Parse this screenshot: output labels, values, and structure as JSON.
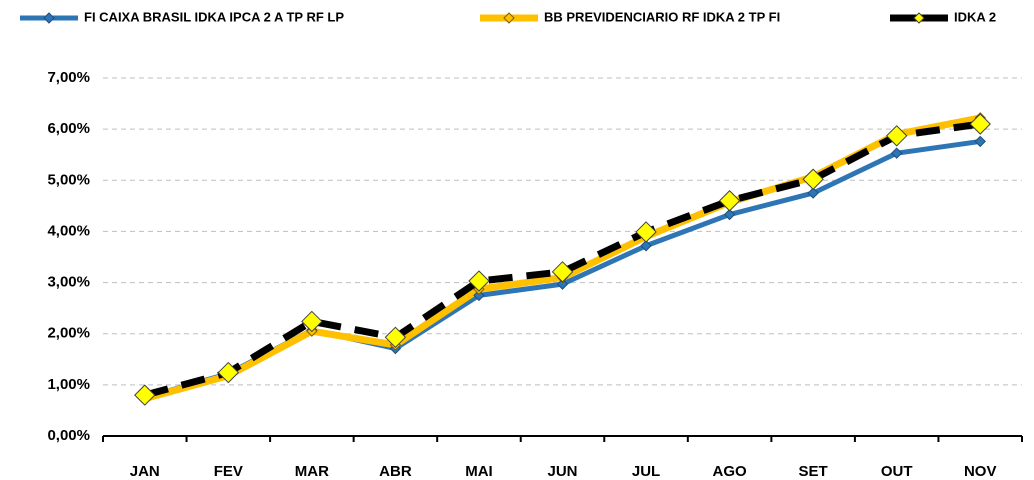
{
  "chart_data": {
    "type": "line",
    "categories": [
      "JAN",
      "FEV",
      "MAR",
      "ABR",
      "MAI",
      "JUN",
      "JUL",
      "AGO",
      "SET",
      "OUT",
      "NOV"
    ],
    "series": [
      {
        "name": "FI CAIXA BRASIL IDKA IPCA 2 A TP RF LP",
        "color": "#2e75b6",
        "values": [
          0.75,
          1.22,
          2.07,
          1.71,
          2.75,
          2.97,
          3.72,
          4.33,
          4.75,
          5.53,
          5.76
        ]
      },
      {
        "name": "BB PREVIDENCIARIO RF IDKA 2 TP FI",
        "color": "#ffc000",
        "values": [
          0.73,
          1.18,
          2.05,
          1.78,
          2.87,
          3.1,
          3.9,
          4.57,
          5.07,
          5.9,
          6.22
        ]
      },
      {
        "name": "IDKA 2",
        "color": "#000000",
        "values": [
          0.8,
          1.24,
          2.24,
          1.93,
          3.03,
          3.21,
          3.99,
          4.6,
          5.02,
          5.87,
          6.1
        ]
      }
    ],
    "ylim": [
      0,
      7
    ],
    "yticks": [
      {
        "value": 0,
        "label": "0,00%"
      },
      {
        "value": 1,
        "label": "1,00%"
      },
      {
        "value": 2,
        "label": "2,00%"
      },
      {
        "value": 3,
        "label": "3,00%"
      },
      {
        "value": 4,
        "label": "4,00%"
      },
      {
        "value": 5,
        "label": "5,00%"
      },
      {
        "value": 6,
        "label": "6,00%"
      },
      {
        "value": 7,
        "label": "7,00%"
      }
    ],
    "grid": true,
    "legend": "top"
  }
}
